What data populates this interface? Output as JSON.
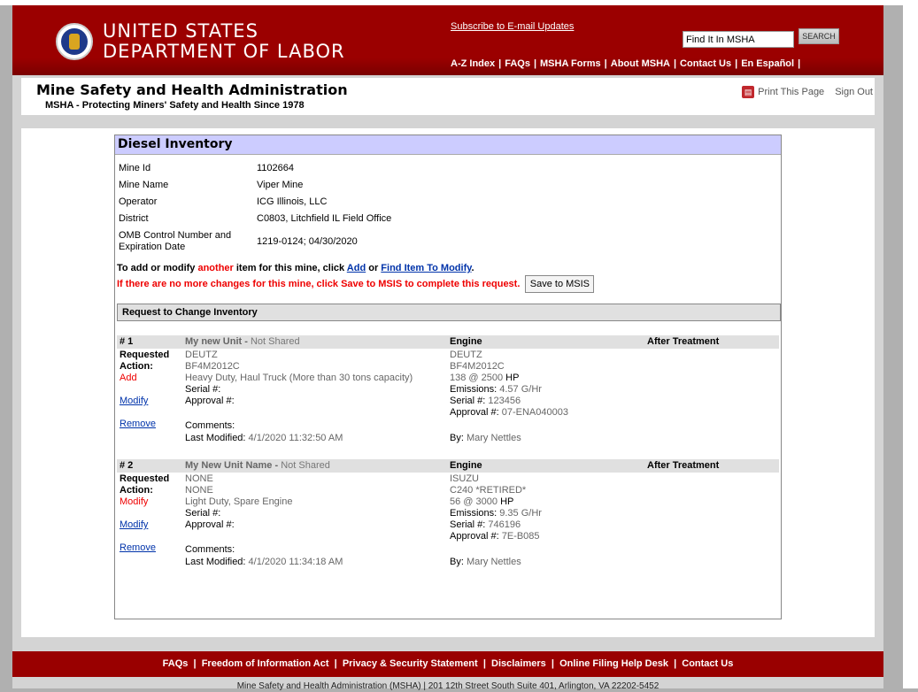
{
  "header": {
    "dept_line1": "UNITED STATES",
    "dept_line2": "DEPARTMENT OF LABOR",
    "subscribe": "Subscribe to E-mail Updates",
    "search_value": "Find It In MSHA",
    "search_button": "SEARCH",
    "nav": [
      "A-Z Index",
      "FAQs",
      "MSHA Forms",
      "About MSHA",
      "Contact Us",
      "En Español"
    ]
  },
  "subheader": {
    "agency": "Mine Safety and Health Administration",
    "tagline": "MSHA - Protecting Miners' Safety and Health Since 1978",
    "print": "Print This Page",
    "signout": "Sign Out"
  },
  "inventory": {
    "title": "Diesel Inventory",
    "fields": [
      {
        "k": "Mine Id",
        "v": "1102664"
      },
      {
        "k": "Mine Name",
        "v": "Viper Mine"
      },
      {
        "k": "Operator",
        "v": "ICG Illinois, LLC"
      },
      {
        "k": "District",
        "v": "C0803, Litchfield IL Field Office"
      },
      {
        "k": "OMB Control Number and Expiration Date",
        "v": "1219-0124; 04/30/2020"
      }
    ],
    "msg_a": "To add or modify ",
    "msg_b": "another",
    "msg_c": " item for this mine, click ",
    "add": "Add",
    "msg_or": " or ",
    "find": "Find Item To Modify",
    "msg_end": ".",
    "msg2": "If there are no more changes for this mine, click Save to MSIS to complete this request.",
    "save": "Save to MSIS",
    "section": "Request to Change Inventory",
    "labels": {
      "requested": "Requested",
      "action": "Action:",
      "serial": "Serial #:",
      "approval": "Approval #:",
      "comments": "Comments:",
      "last_modified": "Last Modified:",
      "engine": "Engine",
      "after": "After Treatment",
      "emissions": "Emissions:",
      "by": "By:",
      "modify": "Modify",
      "remove": "Remove",
      "hp": "HP"
    },
    "items": [
      {
        "num": "# 1",
        "name": "My new Unit -",
        "shared": "Not Shared",
        "action": "Add",
        "make": "DEUTZ",
        "model": "BF4M2012C",
        "desc": "Heavy Duty, Haul Truck (More than 30 tons capacity)",
        "modified": "4/1/2020 11:32:50 AM",
        "eng_make": "DEUTZ",
        "eng_model": "BF4M2012C",
        "eng_hp": "138 @ 2500",
        "eng_emis": "4.57 G/Hr",
        "eng_serial": "123456",
        "eng_approval": "07-ENA040003",
        "by": "Mary Nettles"
      },
      {
        "num": "# 2",
        "name": "My New Unit Name -",
        "shared": "Not Shared",
        "action": "Modify",
        "make": "NONE",
        "model": "NONE",
        "desc": "Light Duty, Spare Engine",
        "modified": "4/1/2020 11:34:18 AM",
        "eng_make": "ISUZU",
        "eng_model": "C240 *RETIRED*",
        "eng_hp": "56 @ 3000",
        "eng_emis": "9.35 G/Hr",
        "eng_serial": "746196",
        "eng_approval": "7E-B085",
        "by": "Mary Nettles"
      }
    ]
  },
  "footer": {
    "links": [
      "FAQs",
      "Freedom of Information Act",
      "Privacy & Security Statement",
      "Disclaimers",
      "Online Filing Help Desk",
      "Contact Us"
    ],
    "address": "Mine Safety and Health Administration (MSHA) | 201 12th Street South Suite 401, Arlington, VA 22202-5452"
  }
}
